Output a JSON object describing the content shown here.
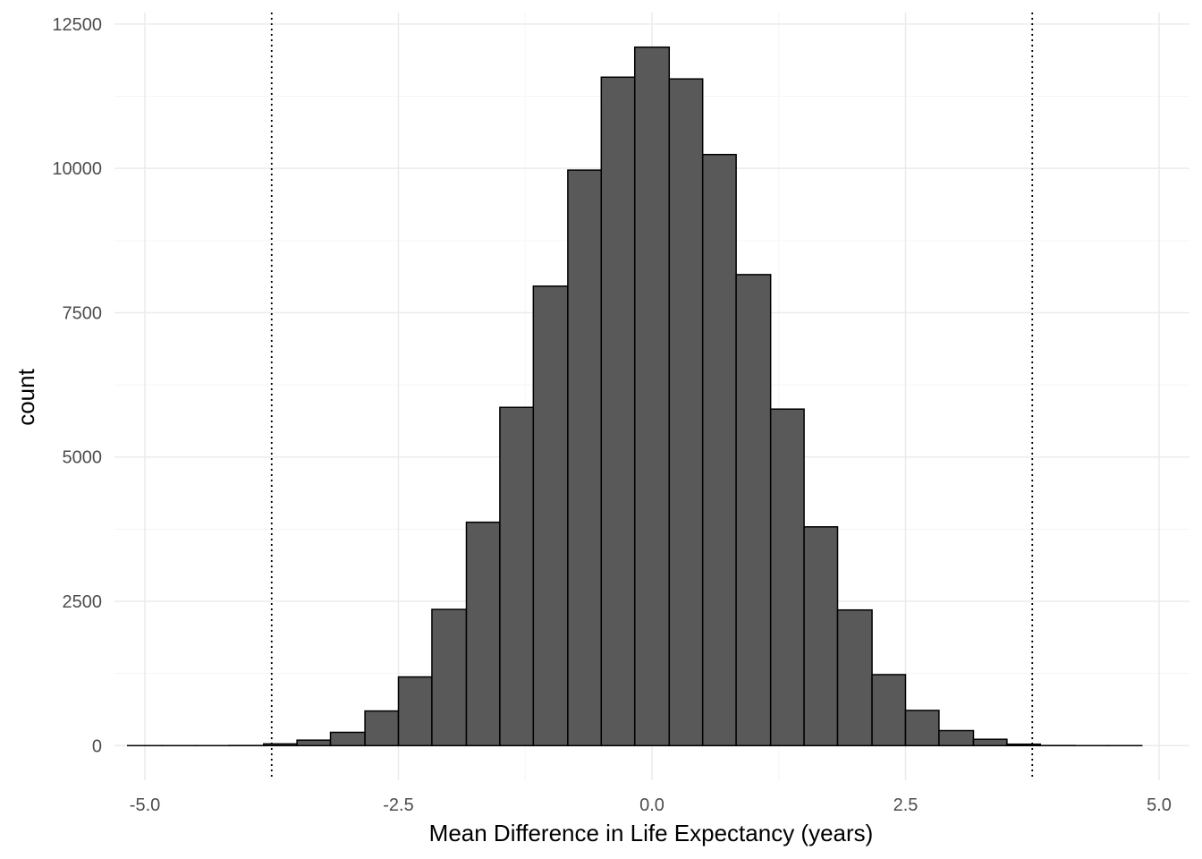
{
  "chart_data": {
    "type": "bar",
    "subtype": "histogram",
    "title": "",
    "xlabel": "Mean Difference in Life Expectancy (years)",
    "ylabel": "count",
    "xlim": [
      -5.3,
      5.3
    ],
    "ylim": [
      -600,
      12700
    ],
    "x_ticks": [
      -5.0,
      -2.5,
      0.0,
      2.5,
      5.0
    ],
    "x_tick_labels": [
      "-5.0",
      "-2.5",
      "0.0",
      "2.5",
      "5.0"
    ],
    "y_ticks": [
      0,
      2500,
      5000,
      7500,
      10000,
      12500
    ],
    "y_tick_labels": [
      "0",
      "2500",
      "5000",
      "7500",
      "10000",
      "12500"
    ],
    "grid": true,
    "bin_width": 0.333,
    "bins": [
      {
        "start": -5.17,
        "end": -4.83,
        "count": 0
      },
      {
        "start": -4.83,
        "end": -4.5,
        "count": 0
      },
      {
        "start": -4.5,
        "end": -4.17,
        "count": 0
      },
      {
        "start": -4.17,
        "end": -3.83,
        "count": 2
      },
      {
        "start": -3.83,
        "end": -3.5,
        "count": 30
      },
      {
        "start": -3.5,
        "end": -3.17,
        "count": 95
      },
      {
        "start": -3.17,
        "end": -2.83,
        "count": 230
      },
      {
        "start": -2.83,
        "end": -2.5,
        "count": 600
      },
      {
        "start": -2.5,
        "end": -2.17,
        "count": 1190
      },
      {
        "start": -2.17,
        "end": -1.83,
        "count": 2360
      },
      {
        "start": -1.83,
        "end": -1.5,
        "count": 3870
      },
      {
        "start": -1.5,
        "end": -1.17,
        "count": 5860
      },
      {
        "start": -1.17,
        "end": -0.83,
        "count": 7960
      },
      {
        "start": -0.83,
        "end": -0.5,
        "count": 9970
      },
      {
        "start": -0.5,
        "end": -0.17,
        "count": 11580
      },
      {
        "start": -0.17,
        "end": 0.17,
        "count": 12100
      },
      {
        "start": 0.17,
        "end": 0.5,
        "count": 11550
      },
      {
        "start": 0.5,
        "end": 0.83,
        "count": 10240
      },
      {
        "start": 0.83,
        "end": 1.17,
        "count": 8160
      },
      {
        "start": 1.17,
        "end": 1.5,
        "count": 5830
      },
      {
        "start": 1.5,
        "end": 1.83,
        "count": 3790
      },
      {
        "start": 1.83,
        "end": 2.17,
        "count": 2350
      },
      {
        "start": 2.17,
        "end": 2.5,
        "count": 1230
      },
      {
        "start": 2.5,
        "end": 2.83,
        "count": 610
      },
      {
        "start": 2.83,
        "end": 3.17,
        "count": 260
      },
      {
        "start": 3.17,
        "end": 3.5,
        "count": 110
      },
      {
        "start": 3.5,
        "end": 3.83,
        "count": 25
      },
      {
        "start": 3.83,
        "end": 4.17,
        "count": 2
      },
      {
        "start": 4.17,
        "end": 4.5,
        "count": 0
      },
      {
        "start": 4.5,
        "end": 4.83,
        "count": 0
      }
    ],
    "reference_lines": [
      {
        "x": -3.75,
        "style": "dotted"
      },
      {
        "x": 3.75,
        "style": "dotted"
      }
    ],
    "colors": {
      "bar_fill": "#595959",
      "bar_stroke": "#000000",
      "grid_major": "#ebebeb",
      "grid_minor": "#f5f5f5",
      "tick_text": "#4d4d4d",
      "title_text": "#000000",
      "ref_line": "#000000"
    }
  }
}
